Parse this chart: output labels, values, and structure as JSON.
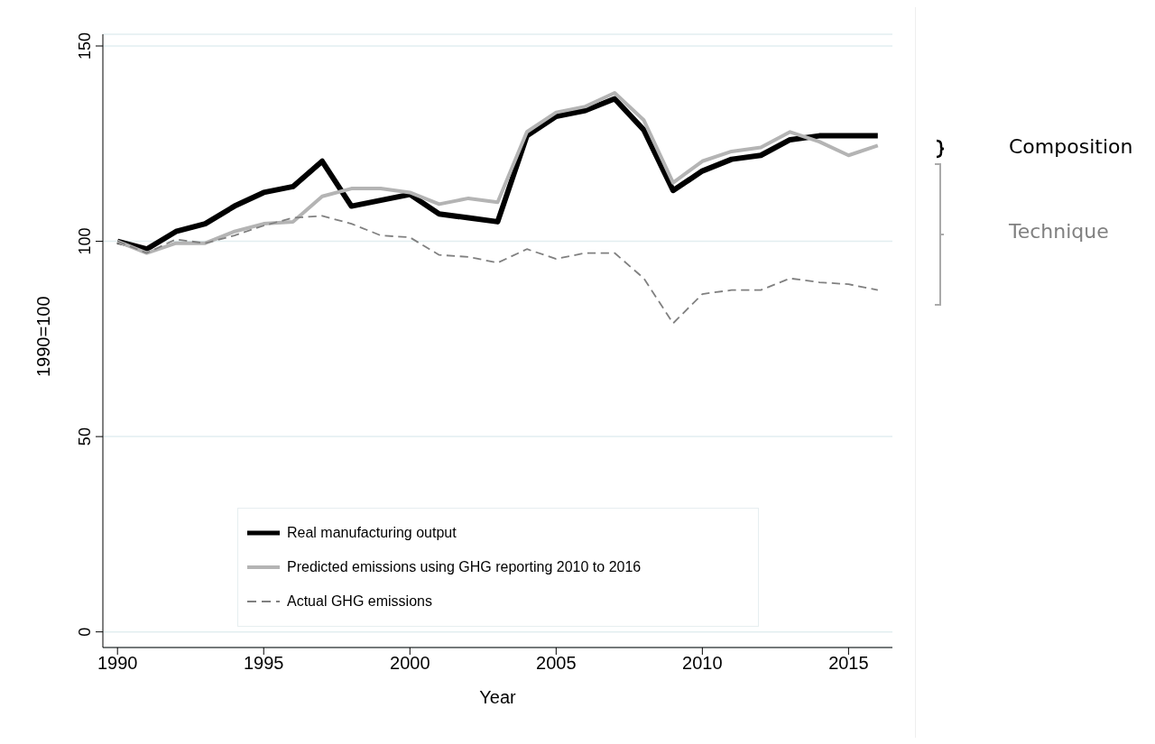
{
  "chart_data": {
    "type": "line",
    "xlabel": "Year",
    "ylabel": "1990=100",
    "x": [
      1990,
      1991,
      1992,
      1993,
      1994,
      1995,
      1996,
      1997,
      1998,
      1999,
      2000,
      2001,
      2002,
      2003,
      2004,
      2005,
      2006,
      2007,
      2008,
      2009,
      2010,
      2011,
      2012,
      2013,
      2014,
      2015,
      2016
    ],
    "series": [
      {
        "name": "Real manufacturing output",
        "color": "#000000",
        "line_style": "solid",
        "values": [
          100,
          98,
          102.5,
          104.5,
          109,
          112.5,
          114,
          120.5,
          109,
          110.5,
          112,
          107,
          106,
          105,
          127,
          132,
          133.5,
          136.5,
          128.5,
          113,
          118,
          121,
          122,
          126,
          127,
          127,
          127
        ]
      },
      {
        "name": "Predicted emissions using GHG reporting 2010 to 2016",
        "color": "#b4b4b4",
        "line_style": "solid",
        "values": [
          100,
          97,
          99.5,
          99.5,
          102.5,
          104.5,
          105,
          111.5,
          113.5,
          113.5,
          112.5,
          109.5,
          111,
          110,
          128,
          133,
          134.5,
          138,
          131,
          115,
          120.5,
          123,
          124,
          128,
          125.5,
          122,
          124.5
        ]
      },
      {
        "name": "Actual GHG emissions",
        "color": "#808080",
        "line_style": "dashed",
        "values": [
          100,
          97,
          100.5,
          99.5,
          101.5,
          104,
          106,
          106.5,
          104.5,
          101.5,
          101,
          96.5,
          96,
          94.5,
          98,
          95.5,
          97,
          97,
          90.5,
          79,
          86.5,
          87.5,
          87.5,
          90.5,
          89.5,
          89,
          87.5
        ]
      }
    ],
    "xlim": [
      1989.5,
      2016.5
    ],
    "xticks": [
      1990,
      1995,
      2000,
      2005,
      2010,
      2015
    ],
    "ylim": [
      -4,
      153
    ],
    "yticks": [
      0,
      50,
      100,
      150
    ],
    "grid": "y",
    "legend": "bottom",
    "marker": "none",
    "annotations": [
      "Composition",
      "Technique"
    ]
  }
}
